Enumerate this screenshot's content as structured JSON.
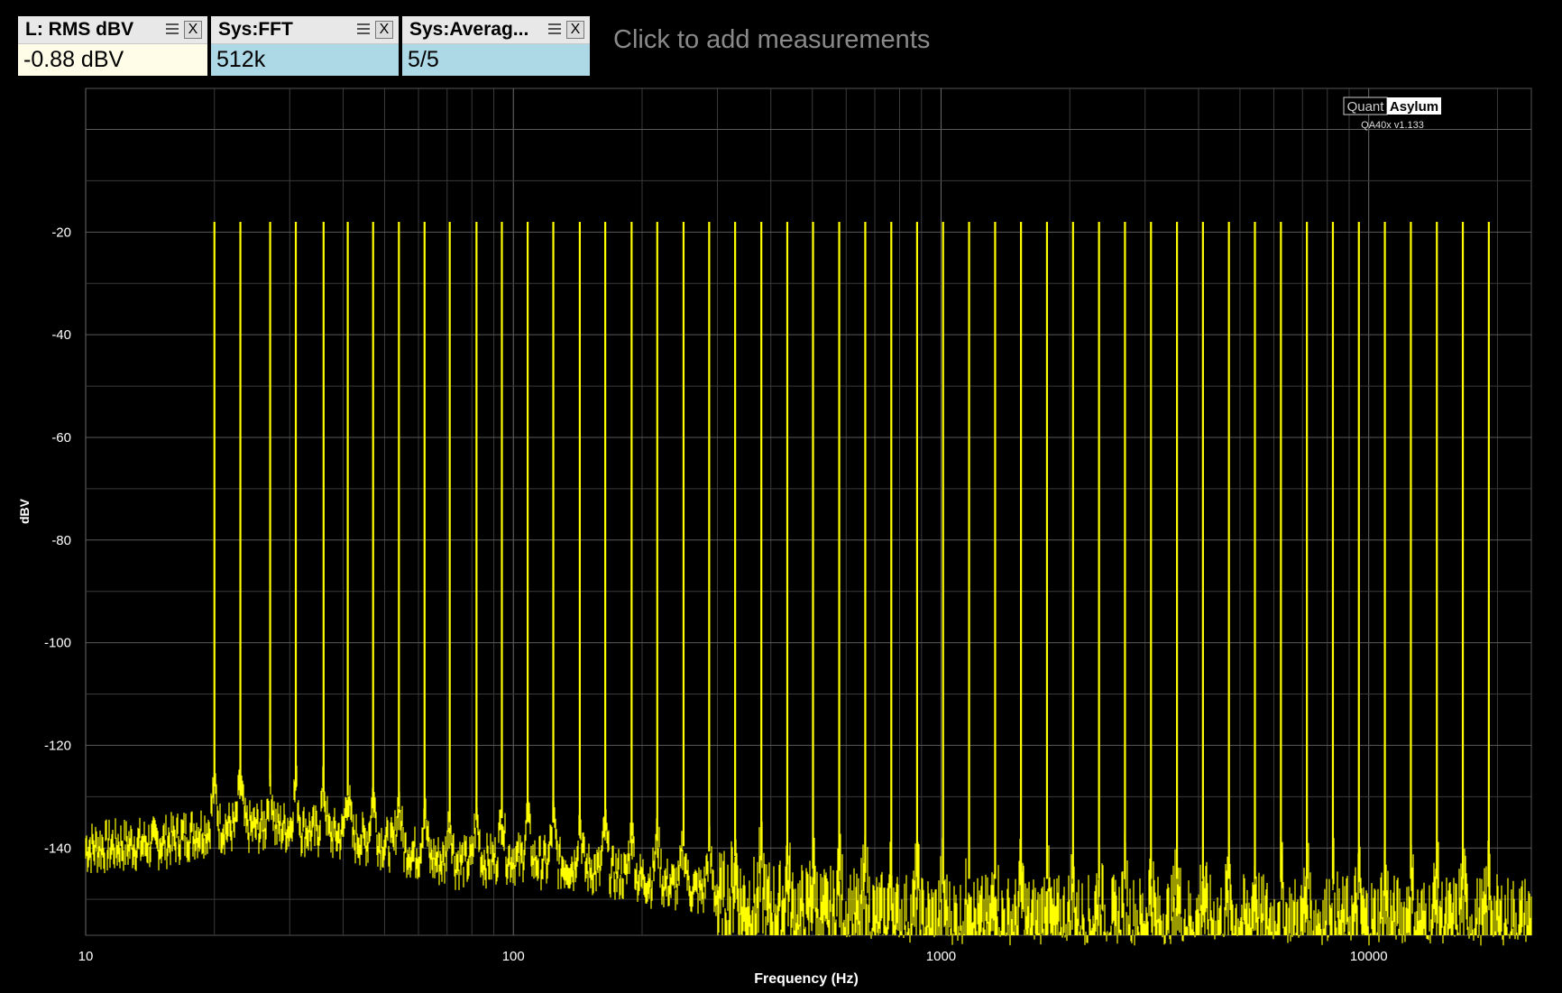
{
  "measurements": [
    {
      "title": "L: RMS dBV",
      "value": "-0.88 dBV"
    },
    {
      "title": "Sys:FFT",
      "value": "512k"
    },
    {
      "title": "Sys:Averag...",
      "value": "5/5"
    }
  ],
  "close_label": "X",
  "add_measurements_label": "Click to add measurements",
  "icons": {
    "menu": "menu-icon",
    "close": "close-icon"
  },
  "watermark": {
    "brand_a": "Quant",
    "brand_b": "Asylum",
    "version": "QA40x v1.133"
  },
  "colors": {
    "trace": "#ffff00",
    "background": "#000000",
    "grid": "#3a3a3a",
    "axis_text": "#ffffff"
  },
  "chart_data": {
    "type": "line",
    "x_scale": "log",
    "xlabel": "Frequency (Hz)",
    "ylabel": "dBV",
    "xlim": [
      10,
      24000
    ],
    "ylim": [
      -157,
      8
    ],
    "x_ticks": [
      10,
      100,
      1000,
      10000
    ],
    "x_tick_labels": [
      "10",
      "100",
      "1000",
      "10000"
    ],
    "y_ticks": [
      -20,
      -40,
      -60,
      -80,
      -100,
      -120,
      -140
    ],
    "y_tick_labels": [
      "-20",
      "-40",
      "-60",
      "-80",
      "-100",
      "-120",
      "-140"
    ],
    "grid": true,
    "series": [
      {
        "tone_frequencies_hz": [
          20,
          23,
          27,
          31,
          36,
          41,
          47,
          54,
          62,
          71,
          82,
          94,
          108,
          124,
          143,
          164,
          189,
          217,
          250,
          287,
          330,
          380,
          437,
          502,
          578,
          665,
          765,
          879,
          1011,
          1163,
          1338,
          1538,
          1769,
          2035,
          2341,
          2692,
          3097,
          3562,
          4096,
          4711,
          5419,
          6233,
          7169,
          8245,
          9484,
          10908,
          12547,
          14431,
          16598,
          19091
        ],
        "tone_level_dbv": -18,
        "noise_floor": {
          "x": [
            10,
            15,
            20,
            30,
            50,
            70,
            100,
            150,
            200,
            300,
            500,
            1000,
            3000,
            10000,
            24000
          ],
          "y": [
            -138,
            -137,
            -134,
            -134,
            -137,
            -141,
            -140,
            -142,
            -144,
            -147,
            -150,
            -152,
            -152,
            -152,
            -152
          ]
        }
      }
    ]
  }
}
